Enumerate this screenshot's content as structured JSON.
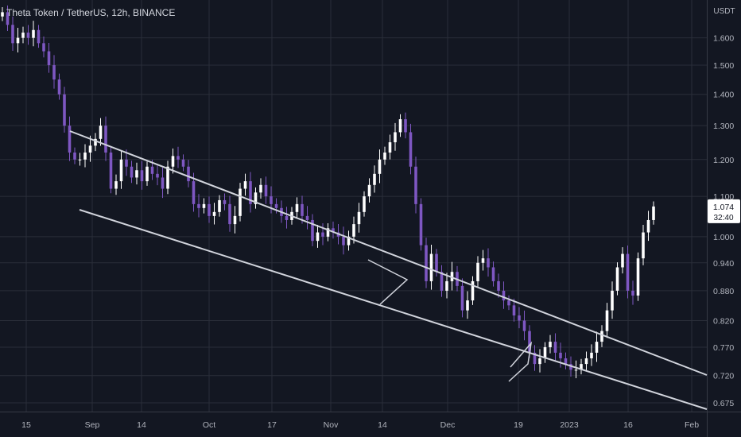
{
  "chart_data": {
    "type": "candlestick",
    "title": "Theta Token / TetherUS, 12h, BINANCE",
    "ylabel": "USDT",
    "y_scale": "log",
    "ylim": [
      0.665,
      1.74
    ],
    "grid": true,
    "x_ticks": [
      "15",
      "Sep",
      "14",
      "Oct",
      "17",
      "Nov",
      "14",
      "Dec",
      "19",
      "2023",
      "16",
      "Feb"
    ],
    "y_ticks": [
      "1.600",
      "1.500",
      "1.400",
      "1.300",
      "1.200",
      "1.100",
      "1.000",
      "0.940",
      "0.880",
      "0.820",
      "0.770",
      "0.720",
      "0.675"
    ],
    "y_tick_values": [
      1.6,
      1.5,
      1.4,
      1.3,
      1.2,
      1.1,
      1.0,
      0.94,
      0.88,
      0.82,
      0.77,
      0.72,
      0.675
    ],
    "last_price": {
      "value": "1.074",
      "countdown": "32:40"
    },
    "series": [
      {
        "name": "",
        "closes": [
          1.7,
          1.65,
          1.58,
          1.6,
          1.62,
          1.6,
          1.63,
          1.58,
          1.55,
          1.5,
          1.45,
          1.4,
          1.3,
          1.22,
          1.2,
          1.2,
          1.22,
          1.24,
          1.26,
          1.3,
          1.22,
          1.12,
          1.14,
          1.2,
          1.18,
          1.15,
          1.17,
          1.14,
          1.18,
          1.16,
          1.15,
          1.12,
          1.18,
          1.21,
          1.2,
          1.18,
          1.14,
          1.08,
          1.07,
          1.08,
          1.05,
          1.06,
          1.09,
          1.08,
          1.03,
          1.05,
          1.12,
          1.14,
          1.08,
          1.11,
          1.13,
          1.1,
          1.08,
          1.07,
          1.05,
          1.04,
          1.06,
          1.08,
          1.05,
          1.04,
          0.99,
          1.01,
          1.0,
          1.02,
          1.01,
          1.0,
          0.98,
          1.0,
          1.03,
          1.06,
          1.1,
          1.13,
          1.16,
          1.2,
          1.22,
          1.25,
          1.28,
          1.32,
          1.28,
          1.18,
          1.08,
          0.98,
          0.9,
          0.96,
          0.92,
          0.88,
          0.9,
          0.92,
          0.89,
          0.84,
          0.86,
          0.9,
          0.94,
          0.95,
          0.93,
          0.9,
          0.88,
          0.86,
          0.85,
          0.83,
          0.82,
          0.8,
          0.76,
          0.74,
          0.75,
          0.77,
          0.78,
          0.76,
          0.75,
          0.74,
          0.73,
          0.73,
          0.74,
          0.75,
          0.76,
          0.78,
          0.8,
          0.84,
          0.88,
          0.93,
          0.96,
          0.88,
          0.87,
          0.95,
          1.01,
          1.04,
          1.074
        ]
      }
    ],
    "trendlines": [
      {
        "from": {
          "x": "Aug 26",
          "y": 1.3
        },
        "to": {
          "x": "Feb 4",
          "y": 0.73
        }
      },
      {
        "from": {
          "x": "Aug 27",
          "y": 1.08
        },
        "to": {
          "x": "Feb 4",
          "y": 0.675
        }
      }
    ],
    "colors": {
      "background": "#131722",
      "up_candle": "#ffffff",
      "down_candle": "#7e57c2",
      "grid": "#2a2e39",
      "trendline": "#d1d4dc",
      "text": "#d1d4dc",
      "last_price_tag": "#ffffff"
    }
  }
}
